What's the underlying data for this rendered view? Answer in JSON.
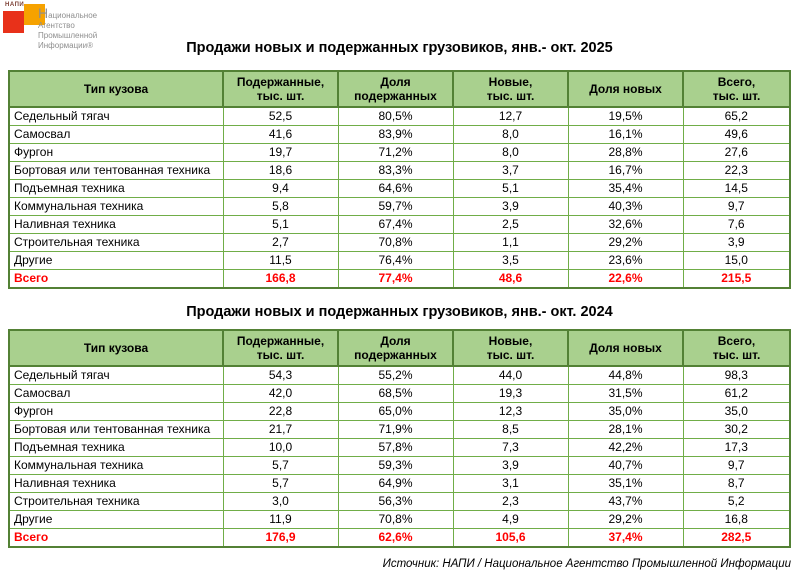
{
  "logo": {
    "acronym": "НАПИ",
    "lines": [
      "Национальное",
      "Агентство",
      "Промышленной",
      "Информации®"
    ],
    "colors": {
      "orange": "#f6a200",
      "red": "#e8311a",
      "text_gray": "#8f8f8f"
    }
  },
  "colors": {
    "header_fill": "#a9d08e",
    "grid_green": "#70ad47",
    "outline_green": "#538135",
    "total_red": "#ff0000"
  },
  "tables": [
    {
      "title": "Продажи новых и подержанных грузовиков, янв.- окт. 2025",
      "headers": [
        "Тип кузова",
        "Подержанные,\nтыс. шт.",
        "Доля\nподержанных",
        "Новые,\nтыс. шт.",
        "Доля новых",
        "Всего,\nтыс. шт."
      ],
      "rows": [
        [
          "Седельный тягач",
          "52,5",
          "80,5%",
          "12,7",
          "19,5%",
          "65,2"
        ],
        [
          "Самосвал",
          "41,6",
          "83,9%",
          "8,0",
          "16,1%",
          "49,6"
        ],
        [
          "Фургон",
          "19,7",
          "71,2%",
          "8,0",
          "28,8%",
          "27,6"
        ],
        [
          "Бортовая или тентованная техника",
          "18,6",
          "83,3%",
          "3,7",
          "16,7%",
          "22,3"
        ],
        [
          "Подъемная техника",
          "9,4",
          "64,6%",
          "5,1",
          "35,4%",
          "14,5"
        ],
        [
          "Коммунальная техника",
          "5,8",
          "59,7%",
          "3,9",
          "40,3%",
          "9,7"
        ],
        [
          "Наливная техника",
          "5,1",
          "67,4%",
          "2,5",
          "32,6%",
          "7,6"
        ],
        [
          "Строительная техника",
          "2,7",
          "70,8%",
          "1,1",
          "29,2%",
          "3,9"
        ],
        [
          "Другие",
          "11,5",
          "76,4%",
          "3,5",
          "23,6%",
          "15,0"
        ]
      ],
      "total": [
        "Всего",
        "166,8",
        "77,4%",
        "48,6",
        "22,6%",
        "215,5"
      ]
    },
    {
      "title": "Продажи новых и подержанных грузовиков, янв.- окт. 2024",
      "headers": [
        "Тип кузова",
        "Подержанные,\nтыс. шт.",
        "Доля\nподержанных",
        "Новые,\nтыс. шт.",
        "Доля новых",
        "Всего,\nтыс. шт."
      ],
      "rows": [
        [
          "Седельный тягач",
          "54,3",
          "55,2%",
          "44,0",
          "44,8%",
          "98,3"
        ],
        [
          "Самосвал",
          "42,0",
          "68,5%",
          "19,3",
          "31,5%",
          "61,2"
        ],
        [
          "Фургон",
          "22,8",
          "65,0%",
          "12,3",
          "35,0%",
          "35,0"
        ],
        [
          "Бортовая или тентованная техника",
          "21,7",
          "71,9%",
          "8,5",
          "28,1%",
          "30,2"
        ],
        [
          "Подъемная техника",
          "10,0",
          "57,8%",
          "7,3",
          "42,2%",
          "17,3"
        ],
        [
          "Коммунальная техника",
          "5,7",
          "59,3%",
          "3,9",
          "40,7%",
          "9,7"
        ],
        [
          "Наливная техника",
          "5,7",
          "64,9%",
          "3,1",
          "35,1%",
          "8,7"
        ],
        [
          "Строительная техника",
          "3,0",
          "56,3%",
          "2,3",
          "43,7%",
          "5,2"
        ],
        [
          "Другие",
          "11,9",
          "70,8%",
          "4,9",
          "29,2%",
          "16,8"
        ]
      ],
      "total": [
        "Всего",
        "176,9",
        "62,6%",
        "105,6",
        "37,4%",
        "282,5"
      ]
    }
  ],
  "footer": {
    "source": "Источник: НАПИ / Национальное Агентство Промышленной Информации"
  }
}
